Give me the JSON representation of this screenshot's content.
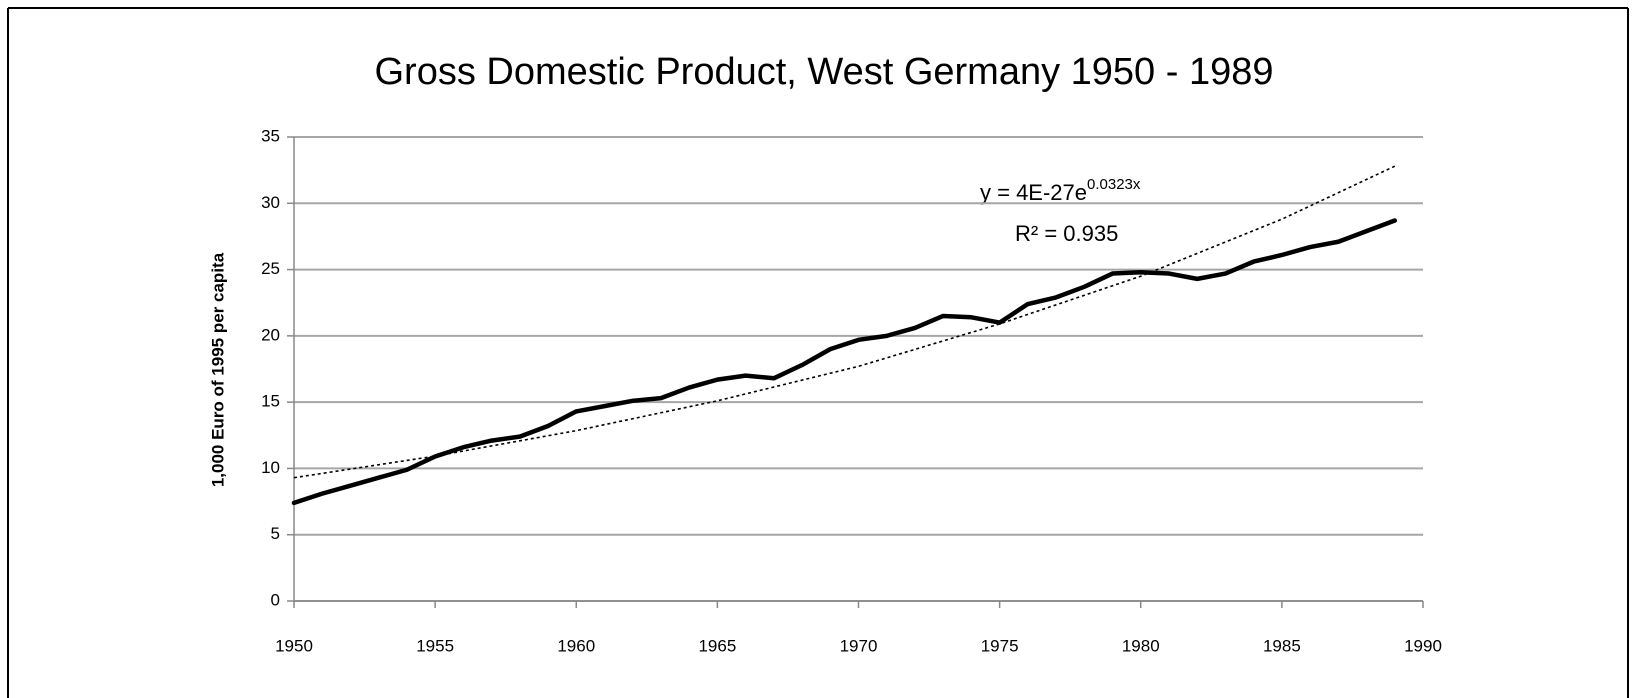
{
  "chart_data": {
    "type": "line",
    "title": "Gross Domestic Product, West Germany 1950 - 1989",
    "y_label": "1,000 Euro of 1995 per capita",
    "x": [
      1950,
      1951,
      1952,
      1953,
      1954,
      1955,
      1956,
      1957,
      1958,
      1959,
      1960,
      1961,
      1962,
      1963,
      1964,
      1965,
      1966,
      1967,
      1968,
      1969,
      1970,
      1971,
      1972,
      1973,
      1974,
      1975,
      1976,
      1977,
      1978,
      1979,
      1980,
      1981,
      1982,
      1983,
      1984,
      1985,
      1986,
      1987,
      1988,
      1989
    ],
    "values": [
      7.4,
      8.1,
      8.7,
      9.3,
      9.9,
      10.9,
      11.6,
      12.1,
      12.4,
      13.2,
      14.3,
      14.7,
      15.1,
      15.3,
      16.1,
      16.7,
      17.0,
      16.8,
      17.8,
      19.0,
      19.7,
      20.0,
      20.6,
      21.5,
      21.4,
      21.0,
      22.4,
      22.9,
      23.7,
      24.7,
      24.8,
      24.7,
      24.3,
      24.7,
      25.6,
      26.1,
      26.7,
      27.1,
      27.9,
      28.7
    ],
    "color": "#000000",
    "trendline": {
      "x": [
        1950,
        1955,
        1960,
        1965,
        1970,
        1975,
        1980,
        1985,
        1989
      ],
      "values": [
        9.3,
        10.93,
        12.85,
        15.1,
        17.7,
        20.9,
        24.5,
        28.8,
        32.8
      ],
      "color": "#000000",
      "style": "dotted"
    },
    "annotations": {
      "equation": "y = 4E-27e",
      "exponent": "0.0323x",
      "r_squared": "R² = 0.935"
    },
    "xlim": [
      1950,
      1990
    ],
    "xticks": [
      1950,
      1955,
      1960,
      1965,
      1970,
      1975,
      1980,
      1985,
      1990
    ],
    "ylim": [
      0,
      35
    ],
    "yticks": [
      0,
      5,
      10,
      15,
      20,
      25,
      30,
      35
    ],
    "grid": true
  }
}
